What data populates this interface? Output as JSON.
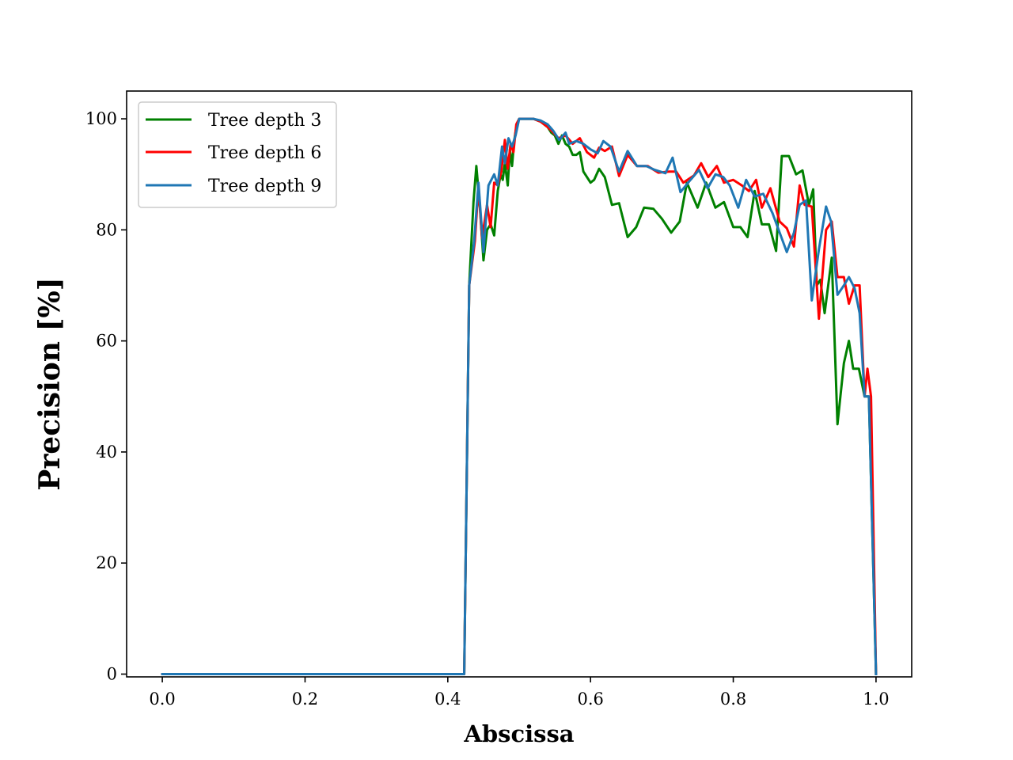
{
  "chart_data": {
    "type": "line",
    "title": "",
    "xlabel": "Abscissa",
    "ylabel": "Precision [%]",
    "xlim": [
      -0.05,
      1.05
    ],
    "ylim": [
      -0.5,
      105
    ],
    "xticks": [
      0.0,
      0.2,
      0.4,
      0.6,
      0.8,
      1.0
    ],
    "xtick_labels": [
      "0.0",
      "0.2",
      "0.4",
      "0.6",
      "0.8",
      "1.0"
    ],
    "yticks": [
      0,
      20,
      40,
      60,
      80,
      100
    ],
    "ytick_labels": [
      "0",
      "20",
      "40",
      "60",
      "80",
      "100"
    ],
    "grid": false,
    "legend_position": "upper-left",
    "series": [
      {
        "name": "Tree depth 3",
        "color": "#008000",
        "points": [
          [
            0,
            0
          ],
          [
            0.42,
            0
          ],
          [
            0.423,
            0
          ],
          [
            0.43,
            70
          ],
          [
            0.436,
            85
          ],
          [
            0.44,
            91.5
          ],
          [
            0.445,
            84
          ],
          [
            0.45,
            74.5
          ],
          [
            0.455,
            80
          ],
          [
            0.46,
            81
          ],
          [
            0.465,
            79
          ],
          [
            0.47,
            87
          ],
          [
            0.474,
            90
          ],
          [
            0.477,
            89
          ],
          [
            0.48,
            92
          ],
          [
            0.484,
            88
          ],
          [
            0.487,
            94.5
          ],
          [
            0.49,
            91.5
          ],
          [
            0.493,
            96
          ],
          [
            0.496,
            98.5
          ],
          [
            0.5,
            100
          ],
          [
            0.51,
            100
          ],
          [
            0.52,
            100
          ],
          [
            0.53,
            99.5
          ],
          [
            0.54,
            98.5
          ],
          [
            0.545,
            97.5
          ],
          [
            0.55,
            97
          ],
          [
            0.555,
            95.5
          ],
          [
            0.56,
            97
          ],
          [
            0.565,
            95.5
          ],
          [
            0.57,
            95
          ],
          [
            0.575,
            93.5
          ],
          [
            0.58,
            93.5
          ],
          [
            0.585,
            94
          ],
          [
            0.59,
            90.5
          ],
          [
            0.6,
            88.5
          ],
          [
            0.605,
            89
          ],
          [
            0.612,
            91
          ],
          [
            0.62,
            89.5
          ],
          [
            0.63,
            84.5
          ],
          [
            0.64,
            84.8
          ],
          [
            0.652,
            78.7
          ],
          [
            0.664,
            80.5
          ],
          [
            0.675,
            84
          ],
          [
            0.688,
            83.8
          ],
          [
            0.7,
            82
          ],
          [
            0.713,
            79.5
          ],
          [
            0.725,
            81.5
          ],
          [
            0.735,
            88.5
          ],
          [
            0.75,
            84
          ],
          [
            0.762,
            88.5
          ],
          [
            0.775,
            84
          ],
          [
            0.787,
            85
          ],
          [
            0.8,
            80.5
          ],
          [
            0.81,
            80.5
          ],
          [
            0.82,
            78.7
          ],
          [
            0.83,
            87
          ],
          [
            0.84,
            81
          ],
          [
            0.85,
            81
          ],
          [
            0.86,
            76.2
          ],
          [
            0.868,
            93.3
          ],
          [
            0.878,
            93.3
          ],
          [
            0.888,
            90
          ],
          [
            0.897,
            90.7
          ],
          [
            0.906,
            84.5
          ],
          [
            0.912,
            87.3
          ],
          [
            0.917,
            70
          ],
          [
            0.922,
            71
          ],
          [
            0.928,
            65
          ],
          [
            0.938,
            75
          ],
          [
            0.946,
            45
          ],
          [
            0.955,
            56
          ],
          [
            0.962,
            60
          ],
          [
            0.968,
            55
          ],
          [
            0.976,
            55
          ],
          [
            0.984,
            50
          ],
          [
            0.99,
            50
          ],
          [
            1.0,
            0
          ]
        ]
      },
      {
        "name": "Tree depth 6",
        "color": "#ff0000",
        "points": [
          [
            0,
            0
          ],
          [
            0.42,
            0
          ],
          [
            0.423,
            0
          ],
          [
            0.43,
            70
          ],
          [
            0.438,
            78
          ],
          [
            0.443,
            88
          ],
          [
            0.448,
            78.5
          ],
          [
            0.455,
            84.5
          ],
          [
            0.46,
            80.5
          ],
          [
            0.465,
            88.5
          ],
          [
            0.47,
            88
          ],
          [
            0.475,
            90.5
          ],
          [
            0.48,
            96.2
          ],
          [
            0.484,
            91
          ],
          [
            0.488,
            95.5
          ],
          [
            0.492,
            94
          ],
          [
            0.496,
            99
          ],
          [
            0.5,
            100
          ],
          [
            0.51,
            100
          ],
          [
            0.52,
            100
          ],
          [
            0.53,
            99.5
          ],
          [
            0.54,
            98.5
          ],
          [
            0.548,
            97.5
          ],
          [
            0.555,
            96.5
          ],
          [
            0.565,
            97
          ],
          [
            0.575,
            95.5
          ],
          [
            0.585,
            96.5
          ],
          [
            0.595,
            94
          ],
          [
            0.605,
            93
          ],
          [
            0.612,
            94.8
          ],
          [
            0.62,
            94.2
          ],
          [
            0.63,
            95
          ],
          [
            0.64,
            89.7
          ],
          [
            0.652,
            93.5
          ],
          [
            0.665,
            91.5
          ],
          [
            0.68,
            91.5
          ],
          [
            0.695,
            90.3
          ],
          [
            0.71,
            90.5
          ],
          [
            0.72,
            90.5
          ],
          [
            0.73,
            88.5
          ],
          [
            0.745,
            89.8
          ],
          [
            0.755,
            92
          ],
          [
            0.765,
            89.5
          ],
          [
            0.777,
            91.5
          ],
          [
            0.787,
            88.5
          ],
          [
            0.8,
            89
          ],
          [
            0.812,
            88
          ],
          [
            0.822,
            87
          ],
          [
            0.832,
            89
          ],
          [
            0.84,
            84
          ],
          [
            0.852,
            87.5
          ],
          [
            0.865,
            81.5
          ],
          [
            0.875,
            80.3
          ],
          [
            0.885,
            77
          ],
          [
            0.893,
            88
          ],
          [
            0.9,
            84.5
          ],
          [
            0.91,
            84.2
          ],
          [
            0.92,
            64
          ],
          [
            0.93,
            80
          ],
          [
            0.938,
            81.5
          ],
          [
            0.946,
            71.5
          ],
          [
            0.955,
            71.5
          ],
          [
            0.962,
            66.7
          ],
          [
            0.97,
            70
          ],
          [
            0.977,
            70
          ],
          [
            0.984,
            50
          ],
          [
            0.988,
            55
          ],
          [
            0.993,
            50
          ],
          [
            1.0,
            0
          ]
        ]
      },
      {
        "name": "Tree depth 9",
        "color": "#1f77b4",
        "points": [
          [
            0,
            0
          ],
          [
            0.42,
            0
          ],
          [
            0.423,
            0
          ],
          [
            0.43,
            70
          ],
          [
            0.437,
            78
          ],
          [
            0.443,
            88.5
          ],
          [
            0.45,
            76
          ],
          [
            0.457,
            88
          ],
          [
            0.465,
            90
          ],
          [
            0.47,
            88
          ],
          [
            0.476,
            95
          ],
          [
            0.48,
            92
          ],
          [
            0.485,
            96.5
          ],
          [
            0.49,
            95
          ],
          [
            0.495,
            97
          ],
          [
            0.5,
            100
          ],
          [
            0.51,
            100
          ],
          [
            0.52,
            100
          ],
          [
            0.53,
            99.7
          ],
          [
            0.54,
            99
          ],
          [
            0.548,
            97.8
          ],
          [
            0.556,
            96.2
          ],
          [
            0.565,
            97.5
          ],
          [
            0.57,
            95.5
          ],
          [
            0.58,
            96
          ],
          [
            0.59,
            95.5
          ],
          [
            0.6,
            94.5
          ],
          [
            0.61,
            93.8
          ],
          [
            0.618,
            96
          ],
          [
            0.628,
            95
          ],
          [
            0.64,
            90.5
          ],
          [
            0.652,
            94.2
          ],
          [
            0.665,
            91.5
          ],
          [
            0.678,
            91.5
          ],
          [
            0.69,
            90.8
          ],
          [
            0.705,
            90.2
          ],
          [
            0.715,
            93
          ],
          [
            0.726,
            86.8
          ],
          [
            0.74,
            89
          ],
          [
            0.752,
            90.8
          ],
          [
            0.764,
            87.5
          ],
          [
            0.775,
            90
          ],
          [
            0.786,
            89.5
          ],
          [
            0.795,
            88
          ],
          [
            0.807,
            84
          ],
          [
            0.818,
            89
          ],
          [
            0.83,
            86
          ],
          [
            0.842,
            86.5
          ],
          [
            0.855,
            83
          ],
          [
            0.865,
            79.5
          ],
          [
            0.875,
            76
          ],
          [
            0.885,
            79.5
          ],
          [
            0.893,
            84.5
          ],
          [
            0.902,
            85.3
          ],
          [
            0.91,
            67.3
          ],
          [
            0.92,
            76.5
          ],
          [
            0.93,
            84.2
          ],
          [
            0.937,
            81.5
          ],
          [
            0.946,
            68.3
          ],
          [
            0.955,
            70
          ],
          [
            0.962,
            71.5
          ],
          [
            0.97,
            69.5
          ],
          [
            0.977,
            65
          ],
          [
            0.984,
            50
          ],
          [
            0.99,
            50
          ],
          [
            1.0,
            0
          ]
        ]
      }
    ]
  }
}
